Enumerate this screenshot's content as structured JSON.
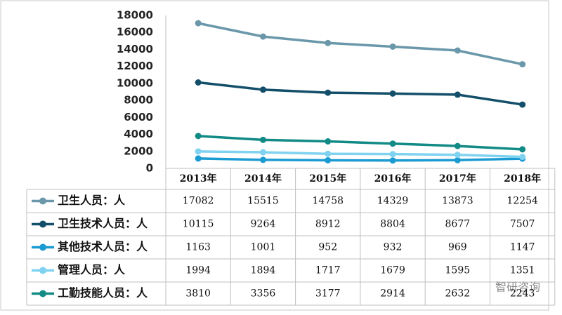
{
  "chart_data": {
    "type": "line",
    "categories": [
      "2013年",
      "2014年",
      "2015年",
      "2016年",
      "2017年",
      "2018年"
    ],
    "series": [
      {
        "name": "卫生人员：人",
        "color": "#6a98aa",
        "values": [
          17082,
          15515,
          14758,
          14329,
          13873,
          12254
        ]
      },
      {
        "name": "卫生技术人员：人",
        "color": "#134f6a",
        "values": [
          10115,
          9264,
          8912,
          8804,
          8677,
          7507
        ]
      },
      {
        "name": "其他技术人员：人",
        "color": "#1c9bd2",
        "values": [
          1163,
          1001,
          952,
          932,
          969,
          1147
        ]
      },
      {
        "name": "管理人员：人",
        "color": "#7fd2f0",
        "values": [
          1994,
          1894,
          1717,
          1679,
          1595,
          1351
        ]
      },
      {
        "name": "工勤技能人员：人",
        "color": "#128a86",
        "values": [
          3810,
          3356,
          3177,
          2914,
          2632,
          2243
        ]
      }
    ],
    "ylim": [
      0,
      18000
    ],
    "yticks": [
      0,
      2000,
      4000,
      6000,
      8000,
      10000,
      12000,
      14000,
      16000,
      18000
    ],
    "watermark": "智研咨询"
  }
}
